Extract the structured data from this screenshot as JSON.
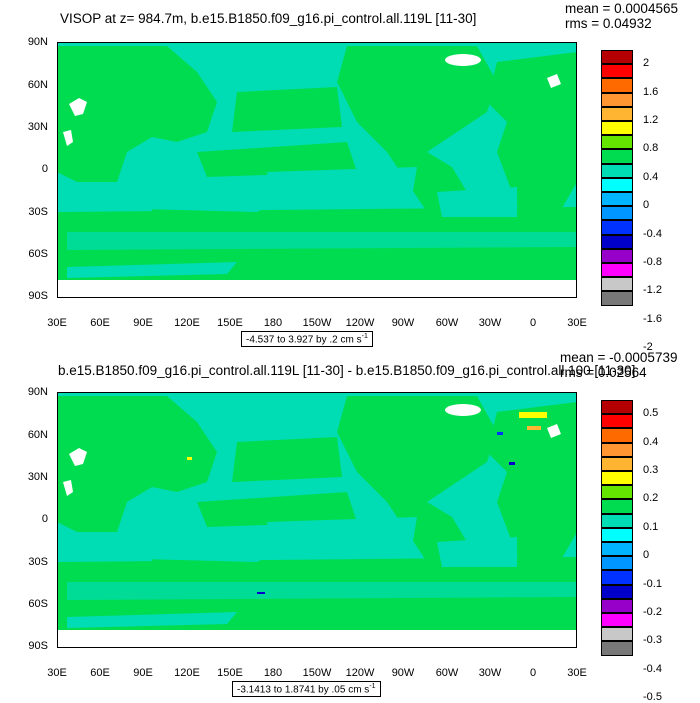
{
  "top": {
    "title": "VISOP at z= 984.7m, b.e15.B1850.f09_g16.pi_control.all.119L [11-30]",
    "mean_label": "mean = 0.0004565",
    "rms_label": "rms = 0.04932",
    "range_label": "-4.537 to 3.927 by .2 cm s",
    "range_sup": "-1",
    "colorbar_labels": [
      "2",
      "1.6",
      "1.2",
      "0.8",
      "0.4",
      "0",
      "-0.4",
      "-0.8",
      "-1.2",
      "-1.6",
      "-2"
    ]
  },
  "bottom": {
    "title": "b.e15.B1850.f09_g16.pi_control.all.119L [11-30] - b.e15.B1850.f09_g16.pi_control.all.100 [11-30]",
    "mean_label": "mean = -0.0005739",
    "rms_label": "rms = 0.02564",
    "range_label": "-3.1413 to 1.8741 by .05 cm s",
    "range_sup": "-1",
    "colorbar_labels": [
      "0.5",
      "0.4",
      "0.3",
      "0.2",
      "0.1",
      "0",
      "-0.1",
      "-0.2",
      "-0.3",
      "-0.4",
      "-0.5"
    ]
  },
  "lat_labels": [
    "90N",
    "60N",
    "30N",
    "0",
    "30S",
    "60S",
    "90S"
  ],
  "lon_labels": [
    "30E",
    "60E",
    "90E",
    "120E",
    "150E",
    "180",
    "150W",
    "120W",
    "90W",
    "60W",
    "30W",
    "0",
    "30E"
  ],
  "colorbar_colors": [
    "#b40000",
    "#ff0000",
    "#ff6a00",
    "#ff9632",
    "#ffb432",
    "#ffff00",
    "#64e600",
    "#00dc50",
    "#00dcb4",
    "#00ffff",
    "#00b4ff",
    "#0096ff",
    "#0032ff",
    "#0000c8",
    "#9600c8",
    "#ff00ff",
    "#c8c8c8",
    "#787878"
  ],
  "map_colors": {
    "land": "#00dc50",
    "ocean": "#00dcb4",
    "missing": "#ffffff"
  }
}
